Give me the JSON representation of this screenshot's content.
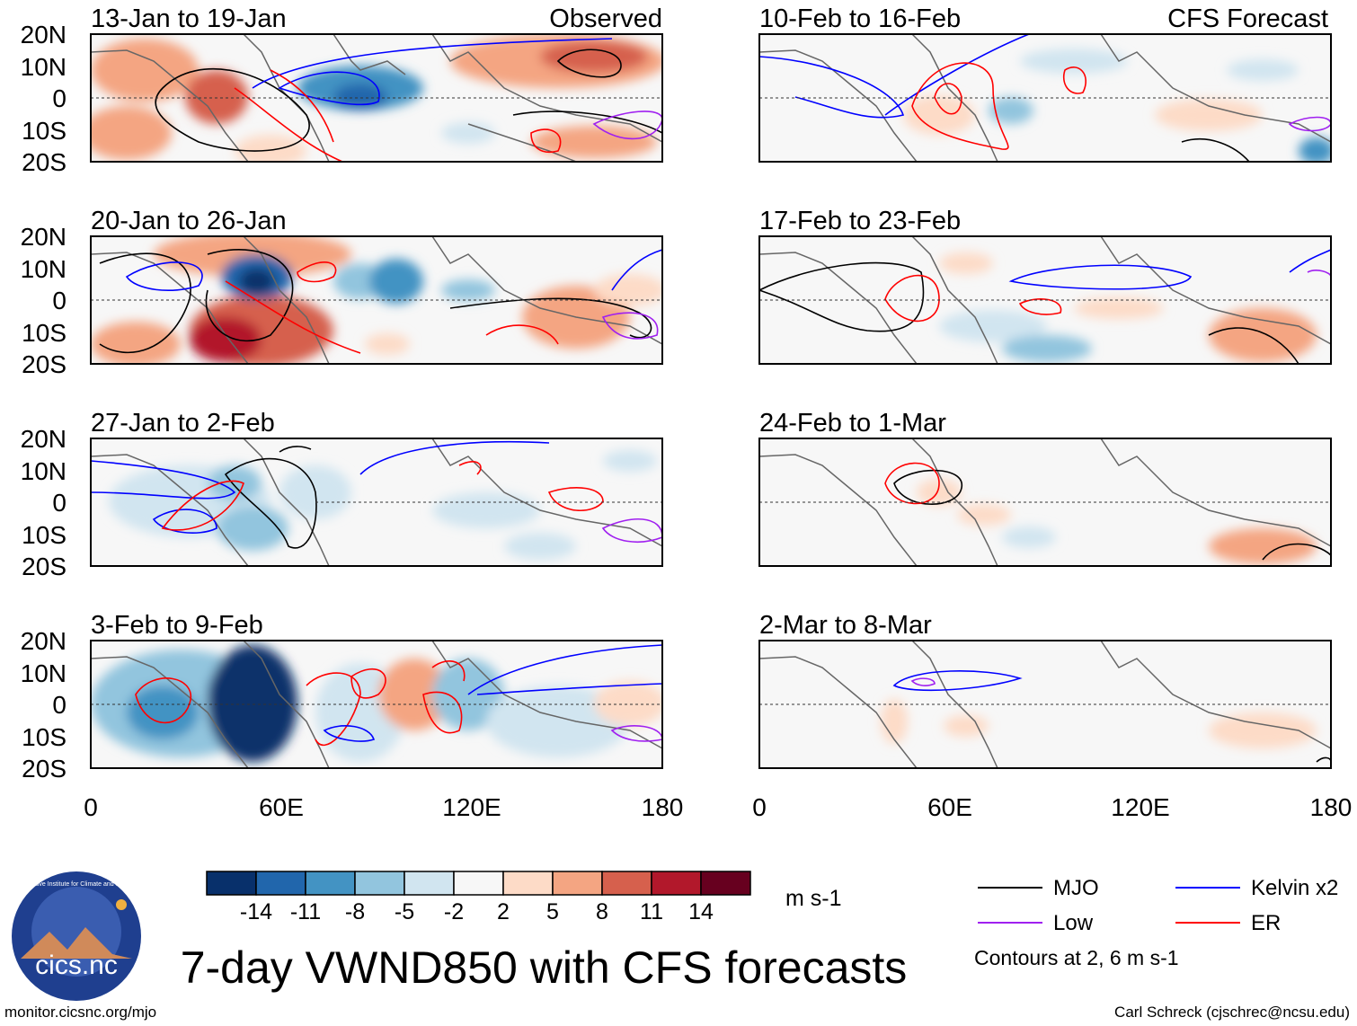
{
  "title": "7-day VWND850 with CFS forecasts",
  "credit_left": "monitor.cicsnc.org/mjo",
  "credit_right": "Carl Schreck (cjschrec@ncsu.edu)",
  "logo": {
    "text": "cics.nc",
    "ring_text": "Cooperative Institute for Climate and Satellites"
  },
  "units": "m s-1",
  "contour_note": "Contours at 2, 6 m s-1",
  "column_labels": {
    "observed": "Observed",
    "forecast": "CFS Forecast"
  },
  "lat_ticks": [
    "20N",
    "10N",
    "0",
    "10S",
    "20S"
  ],
  "lon_ticks": [
    "0",
    "60E",
    "120E",
    "180"
  ],
  "colorbar": {
    "labels": [
      "-14",
      "-11",
      "-8",
      "-5",
      "-2",
      "2",
      "5",
      "8",
      "11",
      "14"
    ],
    "colors": [
      "#08306b",
      "#2166ac",
      "#4393c3",
      "#92c5de",
      "#d1e5f0",
      "#f7f7f7",
      "#fddbc7",
      "#f4a582",
      "#d6604d",
      "#b2182b",
      "#67001f"
    ]
  },
  "legend": [
    {
      "name": "MJO",
      "color": "#000000"
    },
    {
      "name": "Kelvin x2",
      "color": "#0000ff"
    },
    {
      "name": "Low",
      "color": "#a020f0"
    },
    {
      "name": "ER",
      "color": "#ff0000"
    }
  ],
  "panels": [
    {
      "period": "13-Jan to 19-Jan",
      "tag": "Observed"
    },
    {
      "period": "10-Feb to 16-Feb",
      "tag": "CFS Forecast"
    },
    {
      "period": "20-Jan to 26-Jan",
      "tag": ""
    },
    {
      "period": "17-Feb to 23-Feb",
      "tag": ""
    },
    {
      "period": "27-Jan to 2-Feb",
      "tag": ""
    },
    {
      "period": "24-Feb to 1-Mar",
      "tag": ""
    },
    {
      "period": "3-Feb to 9-Feb",
      "tag": ""
    },
    {
      "period": "2-Mar to 8-Mar",
      "tag": ""
    }
  ]
}
